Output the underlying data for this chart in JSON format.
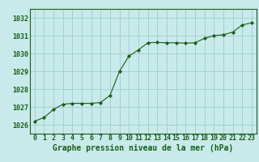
{
  "x": [
    0,
    1,
    2,
    3,
    4,
    5,
    6,
    7,
    8,
    9,
    10,
    11,
    12,
    13,
    14,
    15,
    16,
    17,
    18,
    19,
    20,
    21,
    22,
    23
  ],
  "y": [
    1026.2,
    1026.4,
    1026.85,
    1027.15,
    1027.2,
    1027.2,
    1027.2,
    1027.25,
    1027.65,
    1029.0,
    1029.85,
    1030.2,
    1030.6,
    1030.62,
    1030.6,
    1030.6,
    1030.58,
    1030.6,
    1030.85,
    1031.0,
    1031.05,
    1031.2,
    1031.6,
    1031.72
  ],
  "line_color": "#1a5e1a",
  "marker_color": "#1a5e1a",
  "bg_color": "#c8eaea",
  "grid_color": "#a0cccc",
  "xlabel": "Graphe pression niveau de la mer (hPa)",
  "xlabel_color": "#1a5e1a",
  "xlabel_fontsize": 7.0,
  "tick_fontsize": 6.0,
  "tick_color": "#1a5e1a",
  "ylim": [
    1025.5,
    1032.5
  ],
  "yticks": [
    1026,
    1027,
    1028,
    1029,
    1030,
    1031,
    1032
  ],
  "xticks": [
    0,
    1,
    2,
    3,
    4,
    5,
    6,
    7,
    8,
    9,
    10,
    11,
    12,
    13,
    14,
    15,
    16,
    17,
    18,
    19,
    20,
    21,
    22,
    23
  ],
  "border_color": "#1a5e1a",
  "axis_bg": "#c8eaea"
}
